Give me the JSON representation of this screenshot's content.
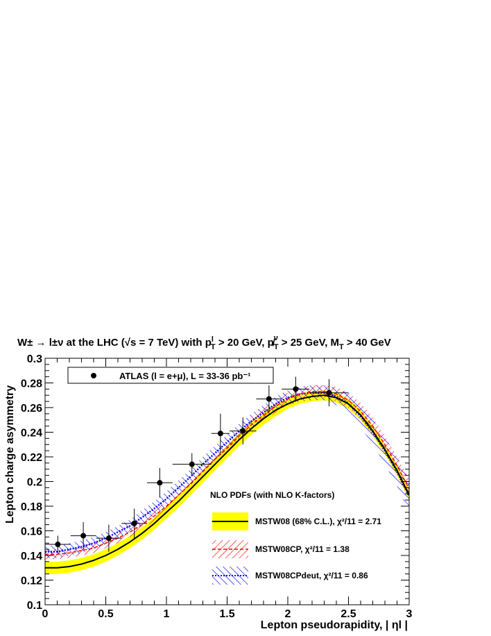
{
  "chart_data": {
    "type": "line",
    "title": "W± → l±ν at the LHC (√s = 7 TeV) with pᵀˡ > 20 GeV, p̸ᵀᵛ > 25 GeV, Mᵀ > 40 GeV",
    "title_parts": {
      "main": "W± → l±ν at the LHC (√s = 7 TeV) with p",
      "pt_cut": " > 20 GeV, ",
      "met_cut": " > 25 GeV, M",
      "mt_cut": " > 40 GeV"
    },
    "xlabel": "Lepton pseudorapidity, | ηl |",
    "ylabel": "Lepton charge asymmetry",
    "xlim": [
      0,
      3
    ],
    "ylim": [
      0.1,
      0.3
    ],
    "x_ticks": [
      0,
      0.5,
      1,
      1.5,
      2,
      2.5,
      3
    ],
    "x_tick_labels": [
      "0",
      "0.5",
      "1",
      "1.5",
      "2",
      "2.5",
      "3"
    ],
    "y_ticks": [
      0.1,
      0.12,
      0.14,
      0.16,
      0.18,
      0.2,
      0.22,
      0.24,
      0.26,
      0.28,
      0.3
    ],
    "y_tick_labels": [
      "0.1",
      "0.12",
      "0.14",
      "0.16",
      "0.18",
      "0.2",
      "0.22",
      "0.24",
      "0.26",
      "0.28",
      "0.3"
    ],
    "data_series": {
      "name": "ATLAS (l = e+μ), L = 33-36 pb⁻¹",
      "points": [
        {
          "x": 0.105,
          "y": 0.149,
          "xlo": 0.0,
          "xhi": 0.21,
          "ey": 0.007
        },
        {
          "x": 0.315,
          "y": 0.156,
          "xlo": 0.21,
          "xhi": 0.42,
          "ey": 0.011
        },
        {
          "x": 0.525,
          "y": 0.154,
          "xlo": 0.42,
          "xhi": 0.63,
          "ey": 0.011
        },
        {
          "x": 0.735,
          "y": 0.166,
          "xlo": 0.63,
          "xhi": 0.84,
          "ey": 0.012
        },
        {
          "x": 0.945,
          "y": 0.199,
          "xlo": 0.84,
          "xhi": 1.05,
          "ey": 0.012
        },
        {
          "x": 1.21,
          "y": 0.214,
          "xlo": 1.05,
          "xhi": 1.37,
          "ey": 0.009
        },
        {
          "x": 1.445,
          "y": 0.239,
          "xlo": 1.37,
          "xhi": 1.52,
          "ey": 0.016
        },
        {
          "x": 1.63,
          "y": 0.241,
          "xlo": 1.52,
          "xhi": 1.74,
          "ey": 0.011
        },
        {
          "x": 1.845,
          "y": 0.267,
          "xlo": 1.74,
          "xhi": 1.95,
          "ey": 0.011
        },
        {
          "x": 2.065,
          "y": 0.275,
          "xlo": 1.95,
          "xhi": 2.18,
          "ey": 0.01
        },
        {
          "x": 2.34,
          "y": 0.272,
          "xlo": 2.18,
          "xhi": 2.5,
          "ey": 0.011
        }
      ]
    },
    "theory_x": [
      0,
      0.1,
      0.2,
      0.3,
      0.4,
      0.5,
      0.6,
      0.7,
      0.8,
      0.9,
      1.0,
      1.1,
      1.2,
      1.3,
      1.4,
      1.5,
      1.6,
      1.7,
      1.8,
      1.9,
      2.0,
      2.1,
      2.2,
      2.3,
      2.4,
      2.5,
      2.6,
      2.7,
      2.8,
      2.9,
      3.0
    ],
    "series": [
      {
        "name": "MSTW08 (68% C.L.), χ²/11 = 2.71",
        "color": "#000000",
        "band_color": "#ffff00",
        "central": [
          0.13,
          0.13,
          0.131,
          0.133,
          0.136,
          0.14,
          0.145,
          0.151,
          0.158,
          0.166,
          0.175,
          0.184,
          0.194,
          0.204,
          0.214,
          0.224,
          0.234,
          0.243,
          0.251,
          0.258,
          0.263,
          0.267,
          0.269,
          0.27,
          0.268,
          0.263,
          0.254,
          0.241,
          0.226,
          0.209,
          0.189
        ],
        "band_halfwidth": [
          0.005,
          0.005,
          0.005,
          0.005,
          0.005,
          0.005,
          0.005,
          0.005,
          0.005,
          0.005,
          0.005,
          0.005,
          0.005,
          0.005,
          0.005,
          0.005,
          0.005,
          0.005,
          0.005,
          0.005,
          0.004,
          0.004,
          0.004,
          0.004,
          0.004,
          0.004,
          0.004,
          0.004,
          0.004,
          0.004,
          0.004
        ]
      },
      {
        "name": "MSTW08CP, χ²/11 = 1.38",
        "color": "#ff0000",
        "central": [
          0.141,
          0.141,
          0.142,
          0.144,
          0.146,
          0.15,
          0.154,
          0.159,
          0.165,
          0.172,
          0.18,
          0.189,
          0.198,
          0.208,
          0.218,
          0.227,
          0.237,
          0.246,
          0.254,
          0.261,
          0.267,
          0.271,
          0.273,
          0.273,
          0.271,
          0.266,
          0.257,
          0.245,
          0.23,
          0.213,
          0.194
        ],
        "band_halfwidth": [
          0.004,
          0.004,
          0.004,
          0.004,
          0.004,
          0.004,
          0.004,
          0.004,
          0.004,
          0.004,
          0.004,
          0.004,
          0.004,
          0.004,
          0.004,
          0.004,
          0.004,
          0.004,
          0.005,
          0.005,
          0.005,
          0.005,
          0.005,
          0.005,
          0.006,
          0.006,
          0.007,
          0.007,
          0.007,
          0.007,
          0.008
        ]
      },
      {
        "name": "MSTW08CPdeut, χ²/11 = 0.86",
        "color": "#0000ff",
        "central": [
          0.143,
          0.143,
          0.145,
          0.147,
          0.15,
          0.154,
          0.159,
          0.164,
          0.171,
          0.178,
          0.186,
          0.195,
          0.204,
          0.214,
          0.223,
          0.232,
          0.241,
          0.249,
          0.256,
          0.263,
          0.268,
          0.271,
          0.272,
          0.272,
          0.269,
          0.263,
          0.253,
          0.24,
          0.225,
          0.208,
          0.188
        ],
        "band_halfwidth": [
          0.005,
          0.005,
          0.005,
          0.005,
          0.005,
          0.005,
          0.005,
          0.005,
          0.006,
          0.006,
          0.006,
          0.006,
          0.006,
          0.006,
          0.006,
          0.006,
          0.006,
          0.006,
          0.006,
          0.006,
          0.006,
          0.006,
          0.006,
          0.006,
          0.007,
          0.008,
          0.009,
          0.01,
          0.011,
          0.012,
          0.013
        ]
      }
    ],
    "legend_header": "NLO PDFs (with NLO K-factors)",
    "legend_placement": "bottom-right",
    "grid": false
  }
}
